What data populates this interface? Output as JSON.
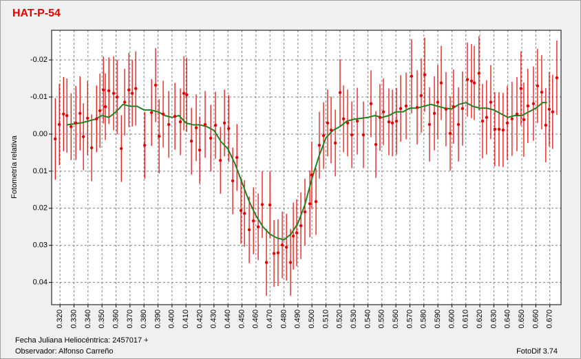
{
  "chart_data": {
    "type": "errorbar",
    "title": "HAT-P-54",
    "y_label": "Fotometría relativa",
    "x_label": "Fecha Juliana Heliocéntrica: 2457017 +",
    "observer": "Observador: Alfonso Carreño",
    "software": "FotoDif 3.74",
    "xlim": [
      0.314,
      0.678
    ],
    "ylim": [
      -0.028,
      0.046
    ],
    "y_inverted": true,
    "grid": true,
    "xticks": [
      {
        "value": 0.32,
        "label": "0.320"
      },
      {
        "value": 0.33,
        "label": "0.330"
      },
      {
        "value": 0.34,
        "label": "0.340"
      },
      {
        "value": 0.35,
        "label": "0.350"
      },
      {
        "value": 0.36,
        "label": "0.360"
      },
      {
        "value": 0.37,
        "label": "0.370"
      },
      {
        "value": 0.38,
        "label": "0.380"
      },
      {
        "value": 0.39,
        "label": "0.390"
      },
      {
        "value": 0.4,
        "label": "0.400"
      },
      {
        "value": 0.41,
        "label": "0.410"
      },
      {
        "value": 0.42,
        "label": "0.420"
      },
      {
        "value": 0.43,
        "label": "0.430"
      },
      {
        "value": 0.44,
        "label": "0.440"
      },
      {
        "value": 0.45,
        "label": "0.450"
      },
      {
        "value": 0.46,
        "label": "0.460"
      },
      {
        "value": 0.47,
        "label": "0.470"
      },
      {
        "value": 0.48,
        "label": "0.480"
      },
      {
        "value": 0.49,
        "label": "0.490"
      },
      {
        "value": 0.5,
        "label": "0.500"
      },
      {
        "value": 0.51,
        "label": "0.510"
      },
      {
        "value": 0.52,
        "label": "0.520"
      },
      {
        "value": 0.53,
        "label": "0.530"
      },
      {
        "value": 0.54,
        "label": "0.540"
      },
      {
        "value": 0.55,
        "label": "0.550"
      },
      {
        "value": 0.56,
        "label": "0.560"
      },
      {
        "value": 0.57,
        "label": "0.570"
      },
      {
        "value": 0.58,
        "label": "0.580"
      },
      {
        "value": 0.59,
        "label": "0.590"
      },
      {
        "value": 0.6,
        "label": "0.600"
      },
      {
        "value": 0.61,
        "label": "0.610"
      },
      {
        "value": 0.62,
        "label": "0.620"
      },
      {
        "value": 0.63,
        "label": "0.630"
      },
      {
        "value": 0.64,
        "label": "0.640"
      },
      {
        "value": 0.65,
        "label": "0.650"
      },
      {
        "value": 0.66,
        "label": "0.660"
      },
      {
        "value": 0.67,
        "label": "0.670"
      }
    ],
    "yticks": [
      -0.02,
      -0.01,
      {
        "value": 0,
        "label": "0.00"
      },
      0.01,
      0.02,
      0.03,
      0.04
    ],
    "points": {
      "color": "#e00000",
      "x": [
        0.3166,
        0.3195,
        0.3225,
        0.3249,
        0.3279,
        0.3313,
        0.3343,
        0.3367,
        0.3397,
        0.3426,
        0.3461,
        0.3485,
        0.351,
        0.3524,
        0.3549,
        0.3583,
        0.3608,
        0.3638,
        0.3662,
        0.3692,
        0.3716,
        0.3741,
        0.3805,
        0.3854,
        0.3883,
        0.3908,
        0.3937,
        0.3977,
        0.4021,
        0.406,
        0.4085,
        0.4105,
        0.4139,
        0.4173,
        0.4198,
        0.4237,
        0.4277,
        0.4311,
        0.4346,
        0.4375,
        0.4405,
        0.4434,
        0.4464,
        0.4493,
        0.4518,
        0.4552,
        0.4582,
        0.4616,
        0.4645,
        0.4675,
        0.47,
        0.4729,
        0.4758,
        0.4788,
        0.4818,
        0.4847,
        0.4867,
        0.4891,
        0.4921,
        0.495,
        0.4985,
        0.4999,
        0.5029,
        0.5053,
        0.5083,
        0.5112,
        0.5137,
        0.5167,
        0.5201,
        0.5226,
        0.5255,
        0.5285,
        0.5324,
        0.5368,
        0.5422,
        0.5457,
        0.5486,
        0.5511,
        0.555,
        0.5575,
        0.5604,
        0.5634,
        0.5673,
        0.5712,
        0.5752,
        0.5781,
        0.5806,
        0.584,
        0.5875,
        0.5899,
        0.5924,
        0.5958,
        0.5988,
        0.6012,
        0.6047,
        0.6076,
        0.6111,
        0.614,
        0.616,
        0.6194,
        0.6219,
        0.6248,
        0.6278,
        0.6307,
        0.6337,
        0.6366,
        0.6396,
        0.643,
        0.6465,
        0.6494,
        0.6514,
        0.6543,
        0.6583,
        0.6612,
        0.6642,
        0.6671,
        0.6696,
        0.672,
        0.675
      ],
      "values": [
        0.0013,
        -0.0026,
        -0.0054,
        -0.005,
        -0.002,
        -0.003,
        -0.0056,
        0.0007,
        -0.0043,
        0.0037,
        -0.0041,
        -0.0063,
        -0.0119,
        -0.0074,
        -0.0117,
        -0.011,
        -0.01,
        0.0039,
        -0.0086,
        -0.0119,
        -0.011,
        -0.0123,
        0.003,
        -0.0058,
        -0.0132,
        0.0006,
        -0.0054,
        -0.0026,
        -0.0048,
        -0.0033,
        -0.011,
        -0.0106,
        0.0019,
        -0.0017,
        0.0043,
        -0.0026,
        0.0011,
        -0.0024,
        0.0071,
        -0.003,
        -0.0015,
        0.0126,
        0.0063,
        0.0206,
        0.0214,
        0.0258,
        0.0234,
        0.025,
        0.019,
        0.0346,
        0.0191,
        0.0322,
        0.032,
        0.0299,
        0.0305,
        0.0346,
        0.0275,
        0.0266,
        0.0247,
        0.021,
        0.0188,
        0.011,
        0.0182,
        0.003,
        0.0004,
        -0.003,
        -0.0011,
        0.0024,
        -0.0112,
        -0.0041,
        -0.003,
        0.0002,
        -0.0035,
        0.0002,
        -0.0082,
        0.0028,
        -0.0045,
        -0.006,
        -0.0033,
        -0.003,
        -0.0035,
        -0.0069,
        -0.0076,
        -0.0156,
        -0.0072,
        -0.0104,
        -0.016,
        -0.0026,
        -0.0056,
        -0.0086,
        -0.0138,
        -0.0067,
        -0.0002,
        -0.0074,
        -0.0026,
        -0.0069,
        -0.0147,
        -0.0143,
        -0.0138,
        -0.0164,
        -0.0035,
        -0.0045,
        -0.0086,
        -0.0013,
        -0.0013,
        -0.0011,
        -0.003,
        -0.0041,
        -0.0054,
        -0.0123,
        -0.0039,
        -0.0076,
        -0.0082,
        -0.013,
        -0.0113,
        -0.0024,
        -0.0067,
        -0.006,
        -0.0152
      ],
      "errors": [
        0.011,
        0.011,
        0.01,
        0.01,
        0.009,
        0.01,
        0.01,
        0.009,
        0.01,
        0.009,
        0.009,
        0.01,
        0.009,
        0.009,
        0.009,
        0.01,
        0.01,
        0.009,
        0.009,
        0.01,
        0.009,
        0.01,
        0.009,
        0.009,
        0.01,
        0.01,
        0.009,
        0.009,
        0.009,
        0.009,
        0.01,
        0.01,
        0.009,
        0.009,
        0.009,
        0.009,
        0.009,
        0.009,
        0.009,
        0.009,
        0.009,
        0.009,
        0.009,
        0.009,
        0.009,
        0.009,
        0.009,
        0.009,
        0.009,
        0.009,
        0.009,
        0.009,
        0.009,
        0.009,
        0.009,
        0.009,
        0.009,
        0.009,
        0.009,
        0.009,
        0.009,
        0.009,
        0.009,
        0.009,
        0.009,
        0.009,
        0.009,
        0.009,
        0.009,
        0.009,
        0.009,
        0.009,
        0.009,
        0.009,
        0.009,
        0.009,
        0.009,
        0.009,
        0.009,
        0.009,
        0.009,
        0.009,
        0.009,
        0.01,
        0.01,
        0.01,
        0.01,
        0.01,
        0.01,
        0.01,
        0.01,
        0.01,
        0.01,
        0.01,
        0.01,
        0.01,
        0.01,
        0.01,
        0.01,
        0.01,
        0.01,
        0.01,
        0.01,
        0.01,
        0.01,
        0.01,
        0.01,
        0.01,
        0.01,
        0.01,
        0.01,
        0.01,
        0.01,
        0.01,
        0.01,
        0.01,
        0.01,
        0.01,
        0.01
      ]
    },
    "fit": {
      "color": "#208020",
      "x": [
        0.325,
        0.335,
        0.345,
        0.35,
        0.355,
        0.36,
        0.365,
        0.37,
        0.375,
        0.38,
        0.385,
        0.39,
        0.395,
        0.4,
        0.405,
        0.41,
        0.415,
        0.42,
        0.425,
        0.43,
        0.435,
        0.44,
        0.445,
        0.45,
        0.455,
        0.46,
        0.465,
        0.47,
        0.475,
        0.48,
        0.485,
        0.49,
        0.495,
        0.5,
        0.505,
        0.51,
        0.515,
        0.52,
        0.525,
        0.53,
        0.54,
        0.545,
        0.55,
        0.555,
        0.56,
        0.565,
        0.57,
        0.575,
        0.58,
        0.585,
        0.59,
        0.595,
        0.6,
        0.605,
        0.61,
        0.615,
        0.62,
        0.625,
        0.63,
        0.635,
        0.64,
        0.645,
        0.65,
        0.655,
        0.66,
        0.665,
        0.668
      ],
      "values": [
        -0.0025,
        -0.003,
        -0.004,
        -0.005,
        -0.0045,
        -0.006,
        -0.008,
        -0.0075,
        -0.0075,
        -0.0065,
        -0.0065,
        -0.006,
        -0.005,
        -0.0045,
        -0.005,
        -0.003,
        -0.0025,
        -0.0025,
        -0.002,
        -0.001,
        0.002,
        0.004,
        0.008,
        0.013,
        0.018,
        0.022,
        0.025,
        0.027,
        0.028,
        0.0285,
        0.027,
        0.024,
        0.019,
        0.012,
        0.006,
        0.001,
        -0.001,
        -0.002,
        -0.0035,
        -0.004,
        -0.0045,
        -0.005,
        -0.0045,
        -0.005,
        -0.006,
        -0.006,
        -0.007,
        -0.007,
        -0.0075,
        -0.008,
        -0.0075,
        -0.007,
        -0.0068,
        -0.008,
        -0.0085,
        -0.0075,
        -0.007,
        -0.007,
        -0.0065,
        -0.0055,
        -0.0045,
        -0.005,
        -0.005,
        -0.006,
        -0.007,
        -0.0085,
        -0.0085
      ]
    }
  }
}
